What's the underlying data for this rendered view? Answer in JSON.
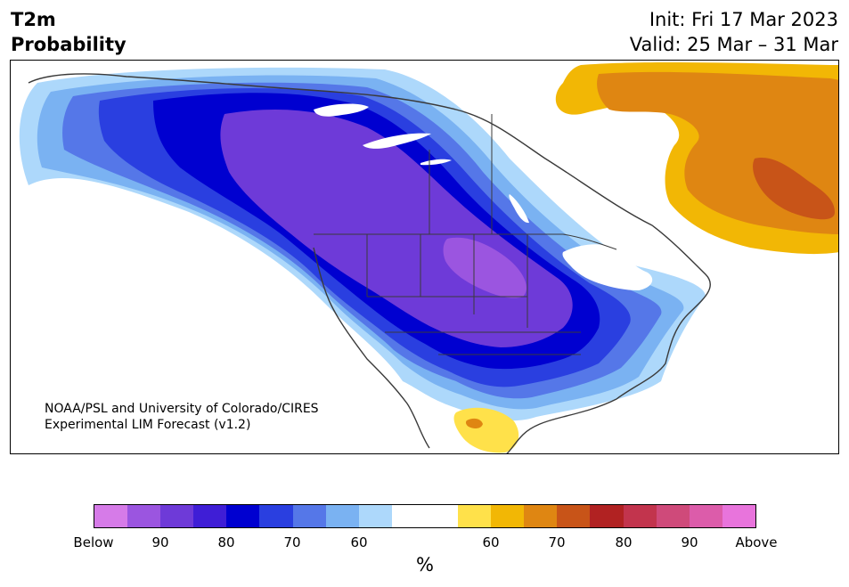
{
  "title": {
    "line1": "T2m",
    "line2": "Probability"
  },
  "dates": {
    "init": "Init: Fri 17 Mar 2023",
    "valid": "Valid: 25 Mar – 31 Mar"
  },
  "credit": {
    "line1": "NOAA/PSL and University of Colorado/CIRES",
    "line2": "Experimental LIM Forecast (v1.2)"
  },
  "colorbar": {
    "colors": [
      "#d67be8",
      "#9b55e0",
      "#6e3ad8",
      "#3f1ed6",
      "#0000d0",
      "#2a3fe0",
      "#5577e8",
      "#7ab2f2",
      "#add8fb",
      "#ffffff",
      "#ffffff",
      "#ffe14a",
      "#f2b705",
      "#df8612",
      "#c85418",
      "#b12222",
      "#c2344d",
      "#cf4a7a",
      "#dc5caa",
      "#e874dc"
    ],
    "tick_labels": [
      "Below",
      "90",
      "80",
      "70",
      "60",
      "60",
      "70",
      "80",
      "90",
      "Above"
    ],
    "unit": "%"
  },
  "map_colors": {
    "below_90": "#9b55e0",
    "below_80": "#6e3ad8",
    "below_70": "#2a3fe0",
    "below_60": "#7ab2f2",
    "above_60": "#f2b705",
    "above_70": "#df8612",
    "above_80": "#c85418",
    "lakes": "#ffffff",
    "borders": "#3a3a3a"
  }
}
